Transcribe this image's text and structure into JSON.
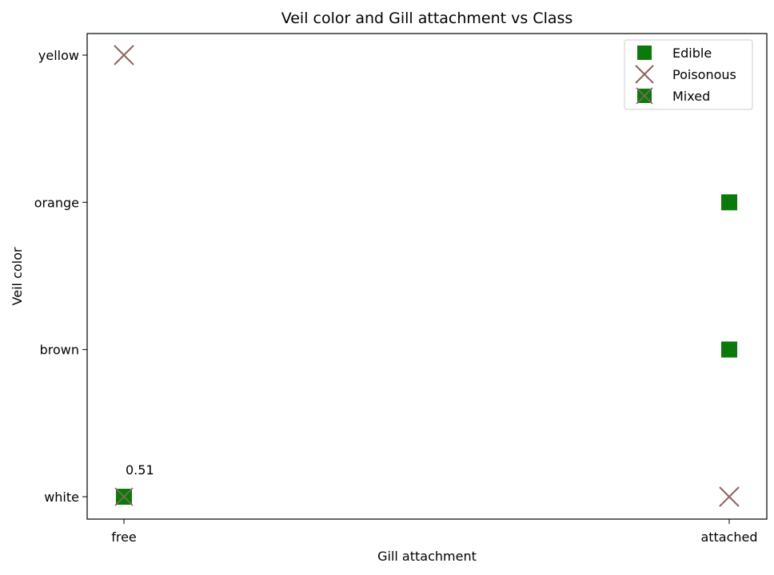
{
  "chart_data": {
    "type": "scatter",
    "title": "Veil color and Gill attachment vs Class",
    "xlabel": "Gill attachment",
    "ylabel": "Veil color",
    "x_categories": [
      "free",
      "attached"
    ],
    "y_categories": [
      "white",
      "brown",
      "orange",
      "yellow"
    ],
    "grid": false,
    "legend_position": "top-right",
    "series": [
      {
        "name": "Edible",
        "marker": "square",
        "color": "#0b7a0b",
        "points": [
          {
            "x": "attached",
            "y": "orange"
          },
          {
            "x": "attached",
            "y": "brown"
          }
        ]
      },
      {
        "name": "Poisonous",
        "marker": "x",
        "color": "#8c6461",
        "points": [
          {
            "x": "free",
            "y": "yellow"
          },
          {
            "x": "attached",
            "y": "white"
          }
        ]
      },
      {
        "name": "Mixed",
        "marker": "square-x",
        "color": "#0b7a0b",
        "points": [
          {
            "x": "free",
            "y": "white",
            "label": "0.51"
          }
        ]
      }
    ]
  }
}
